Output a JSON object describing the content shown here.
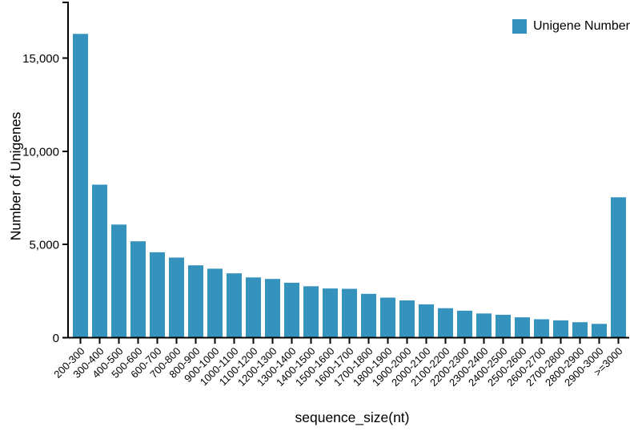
{
  "chart_data": {
    "type": "bar",
    "title": "",
    "xlabel": "sequence_size(nt)",
    "ylabel": "Number of Unigenes",
    "legend": {
      "label": "Unigene Number",
      "position": "top-right"
    },
    "bar_color": "#3492BC",
    "axis_color": "#000000",
    "grid": false,
    "categories": [
      "200-300",
      "300-400",
      "400-500",
      "500-600",
      "600-700",
      "700-800",
      "800-900",
      "900-1000",
      "1000-1100",
      "1100-1200",
      "1200-1300",
      "1300-1400",
      "1400-1500",
      "1500-1600",
      "1600-1700",
      "1700-1800",
      "1800-1900",
      "1900-2000",
      "2000-2100",
      "2100-2200",
      "2200-2300",
      "2300-2400",
      "2400-2500",
      "2500-2600",
      "2600-2700",
      "2700-2800",
      "2800-2900",
      "2900-3000",
      ">=3000"
    ],
    "values": [
      16300,
      8210,
      6070,
      5170,
      4580,
      4300,
      3880,
      3700,
      3450,
      3230,
      3150,
      2950,
      2760,
      2640,
      2620,
      2350,
      2150,
      2000,
      1790,
      1580,
      1450,
      1300,
      1230,
      1090,
      990,
      930,
      830,
      740,
      7530
    ],
    "ylim": [
      0,
      18000
    ],
    "yticks": [
      0,
      5000,
      10000,
      15000
    ],
    "ytick_labels": [
      "0",
      "5,000",
      "10,000",
      "15,000"
    ]
  }
}
